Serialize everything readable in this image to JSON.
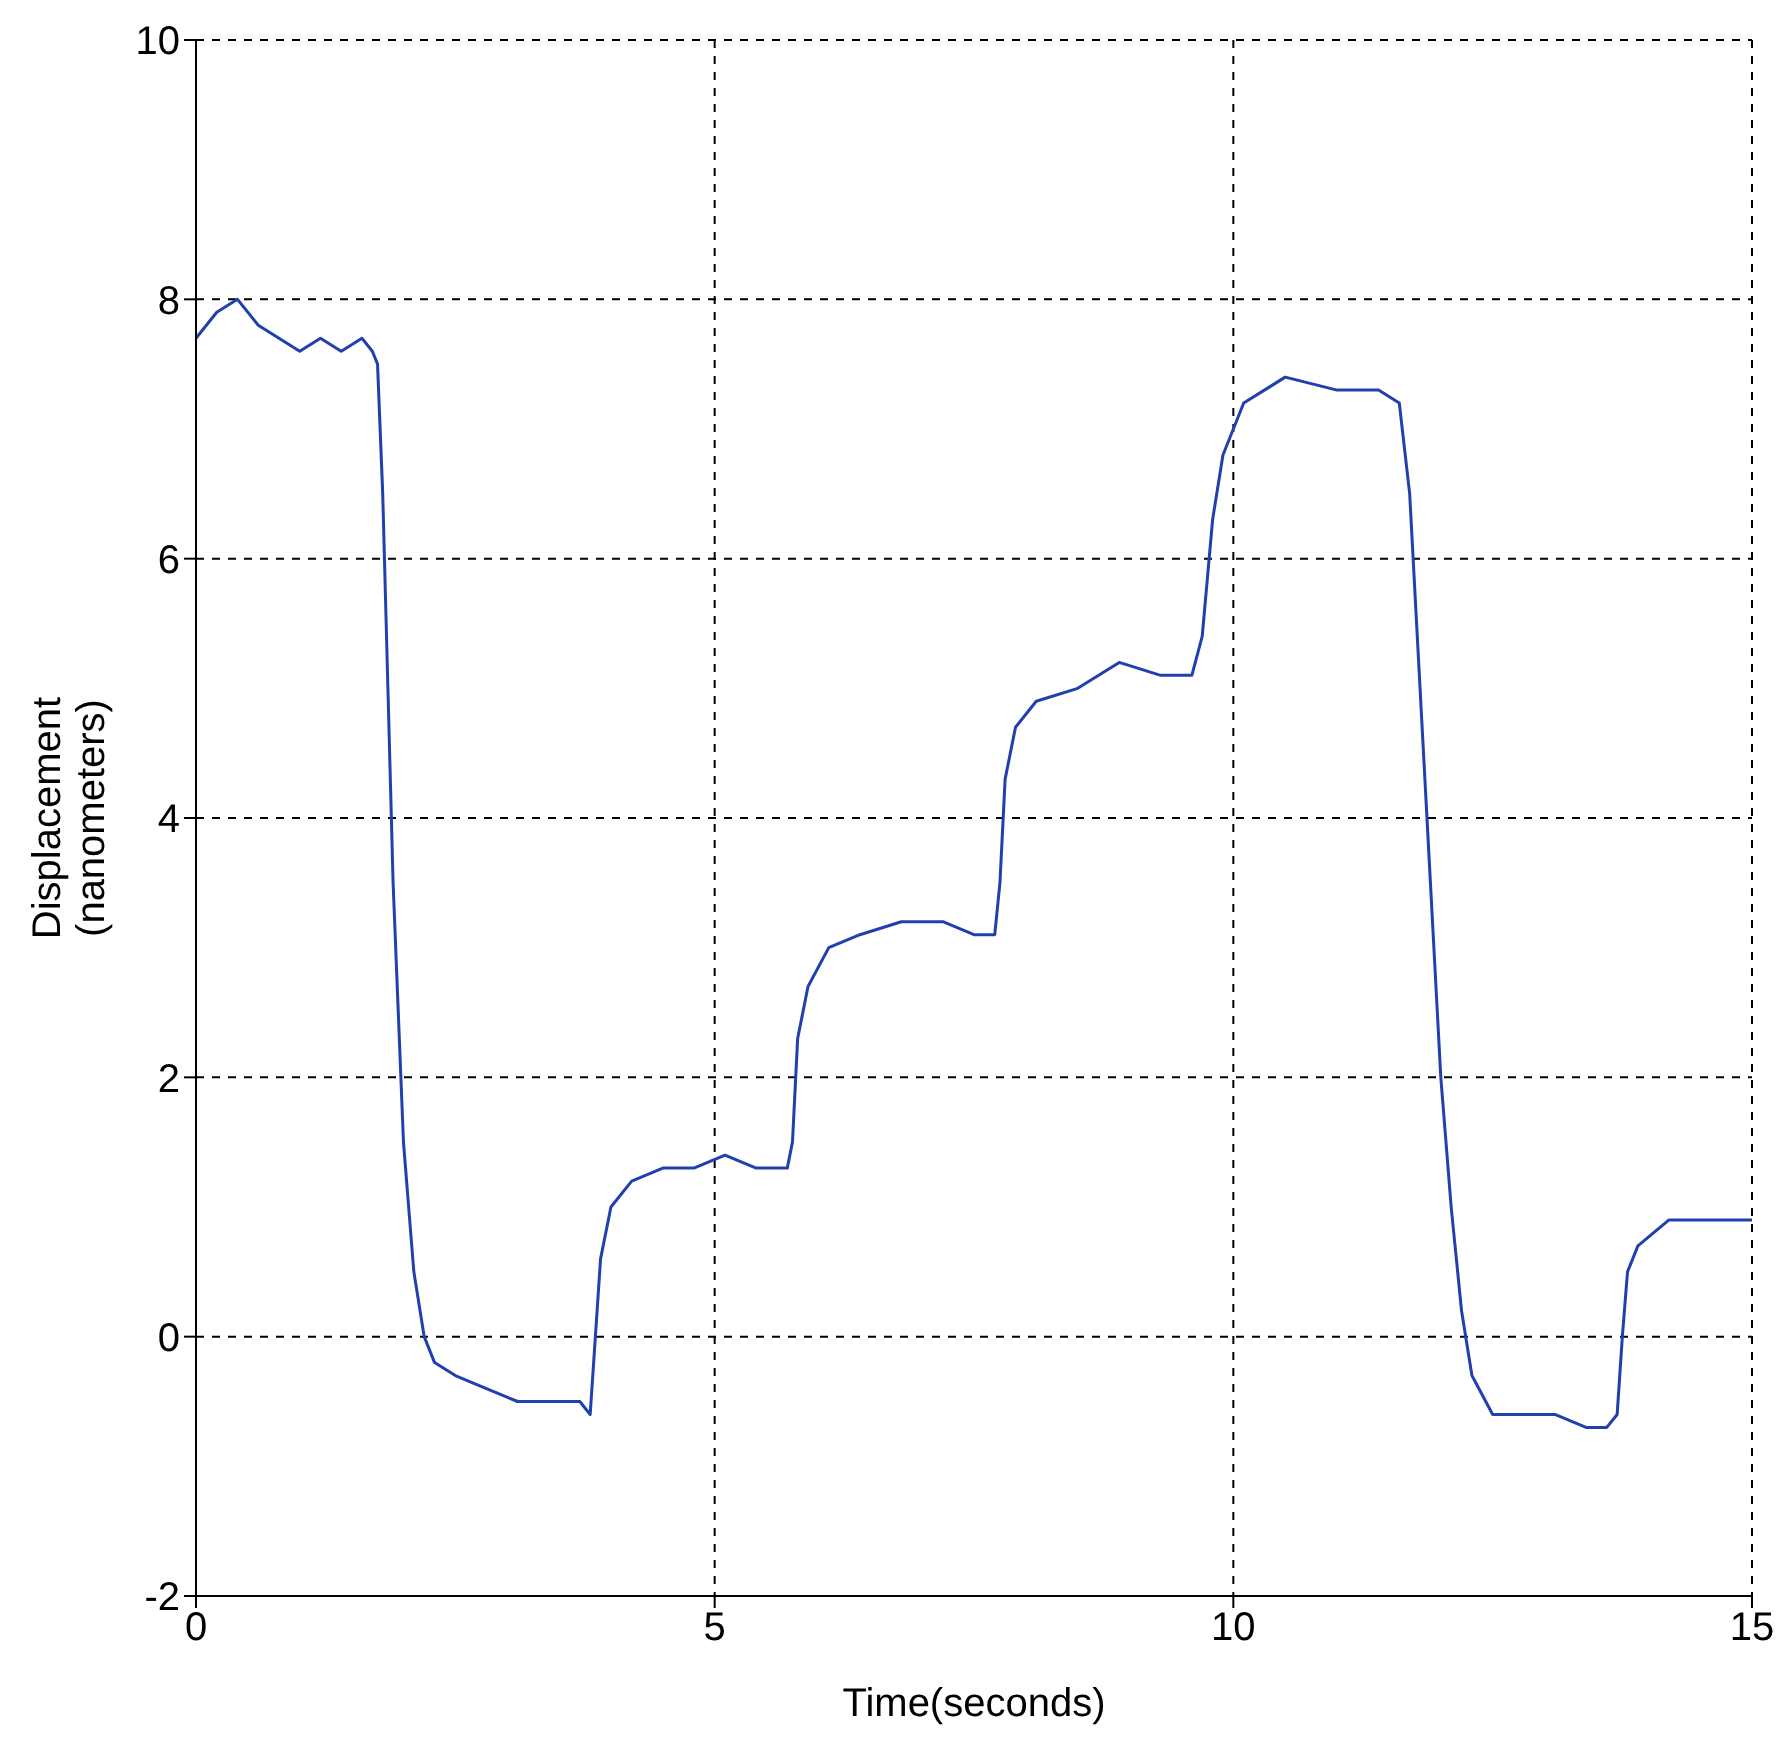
{
  "chart_data": {
    "type": "line",
    "xlabel": "Time(seconds)",
    "ylabel": "Displacement (nanometers)",
    "xlim": [
      0,
      15
    ],
    "xticks": [
      0,
      5,
      10,
      15
    ],
    "ylim": [
      -2,
      10
    ],
    "yticks": [
      -2,
      0,
      2,
      4,
      6,
      8,
      10
    ],
    "grid": true,
    "legend": false,
    "marker": "none",
    "line_style": "solid",
    "series": [
      {
        "color": "#2040b0",
        "x": [
          0,
          0.2,
          0.4,
          0.6,
          0.8,
          1.0,
          1.2,
          1.4,
          1.6,
          1.7,
          1.75,
          1.8,
          1.85,
          1.9,
          1.95,
          2.0,
          2.1,
          2.2,
          2.3,
          2.5,
          2.8,
          3.1,
          3.4,
          3.7,
          3.8,
          3.85,
          3.9,
          4.0,
          4.2,
          4.5,
          4.8,
          5.1,
          5.4,
          5.7,
          5.75,
          5.8,
          5.9,
          6.1,
          6.4,
          6.8,
          7.2,
          7.5,
          7.7,
          7.75,
          7.8,
          7.9,
          8.1,
          8.5,
          8.9,
          9.3,
          9.6,
          9.7,
          9.8,
          9.9,
          10.1,
          10.5,
          11.0,
          11.4,
          11.6,
          11.7,
          11.8,
          11.9,
          12.0,
          12.1,
          12.2,
          12.3,
          12.5,
          12.8,
          13.1,
          13.4,
          13.6,
          13.7,
          13.75,
          13.8,
          13.9,
          14.2,
          14.6,
          15
        ],
        "values": [
          7.7,
          7.9,
          8.0,
          7.8,
          7.7,
          7.6,
          7.7,
          7.6,
          7.7,
          7.6,
          7.5,
          6.5,
          5,
          3.5,
          2.5,
          1.5,
          0.5,
          0,
          -0.2,
          -0.3,
          -0.4,
          -0.5,
          -0.5,
          -0.5,
          -0.6,
          0,
          0.6,
          1.0,
          1.2,
          1.3,
          1.3,
          1.4,
          1.3,
          1.3,
          1.5,
          2.3,
          2.7,
          3.0,
          3.1,
          3.2,
          3.2,
          3.1,
          3.1,
          3.5,
          4.3,
          4.7,
          4.9,
          5.0,
          5.2,
          5.1,
          5.1,
          5.4,
          6.3,
          6.8,
          7.2,
          7.4,
          7.3,
          7.3,
          7.2,
          6.5,
          5.0,
          3.5,
          2.0,
          1.0,
          0.2,
          -0.3,
          -0.6,
          -0.6,
          -0.6,
          -0.7,
          -0.7,
          -0.6,
          0,
          0.5,
          0.7,
          0.9,
          0.9,
          0.9
        ]
      }
    ]
  }
}
